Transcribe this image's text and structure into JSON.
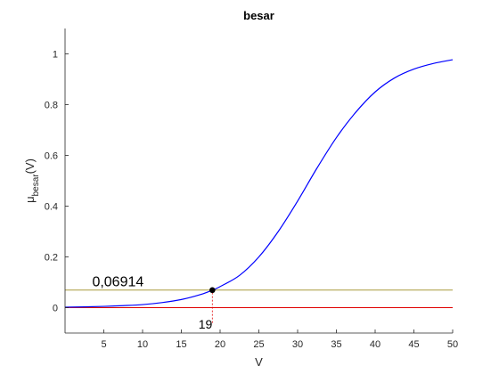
{
  "chart_data": {
    "type": "line",
    "title": "besar",
    "xlabel": "V",
    "ylabel_main": "μ",
    "ylabel_sub": "besar",
    "ylabel_suffix": "(V)",
    "xlim": [
      0,
      50
    ],
    "ylim": [
      -0.1,
      1.1
    ],
    "xticks": [
      5,
      10,
      15,
      20,
      25,
      30,
      35,
      40,
      45,
      50
    ],
    "xtick_labels": [
      "5",
      "10",
      "15",
      "20",
      "25",
      "30",
      "35",
      "40",
      "45",
      "50"
    ],
    "yticks": [
      0,
      0.2,
      0.4,
      0.6,
      0.8,
      1
    ],
    "ytick_labels": [
      "0",
      "0.2",
      "0.4",
      "0.6",
      "0.8",
      "1"
    ],
    "grid": false,
    "series": [
      {
        "color": "#0000ff",
        "x": [
          0,
          2.5,
          5,
          7.5,
          10,
          12.5,
          15,
          17.5,
          19,
          20,
          22.5,
          25,
          27.5,
          30,
          32.5,
          35,
          37.5,
          40,
          42.5,
          45,
          47.5,
          50
        ],
        "y": [
          0.002,
          0.003,
          0.005,
          0.008,
          0.012,
          0.02,
          0.032,
          0.052,
          0.069,
          0.083,
          0.127,
          0.2,
          0.3,
          0.42,
          0.55,
          0.67,
          0.77,
          0.85,
          0.905,
          0.94,
          0.962,
          0.977
        ]
      }
    ],
    "hlines": [
      {
        "y": 0.06914,
        "color": "#a89a3c"
      },
      {
        "y": 0,
        "color": "#e00000"
      }
    ],
    "vlines": [
      {
        "x": 19,
        "y_from": -0.06,
        "y_to": 0.06914,
        "color": "#e00000",
        "style": "dashed"
      }
    ],
    "marker": {
      "x": 19,
      "y": 0.06914,
      "color": "#000000"
    },
    "annotations": [
      {
        "text": "0,06914",
        "x": 3.5,
        "y": 0.085
      },
      {
        "text": "19",
        "x": 19,
        "y": -0.065
      }
    ]
  }
}
